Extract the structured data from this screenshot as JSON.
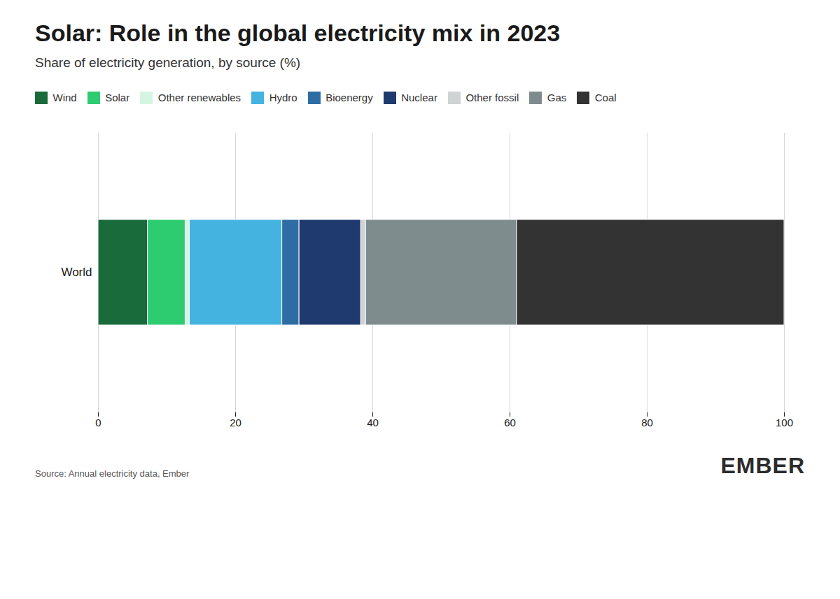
{
  "chart_data": {
    "type": "bar",
    "orientation": "horizontal",
    "stacked": true,
    "title": "Solar: Role in the global electricity mix in 2023",
    "subtitle": "Share of electricity generation, by source (%)",
    "annotations": [
      "Source: Annual electricity data, Ember",
      "EMBER"
    ],
    "categories": [
      "World"
    ],
    "series": [
      {
        "name": "Wind",
        "color": "#1a6b3c",
        "values": [
          7.2
        ]
      },
      {
        "name": "Solar",
        "color": "#2ecc71",
        "values": [
          5.5
        ]
      },
      {
        "name": "Other renewables",
        "color": "#d5f5e3",
        "values": [
          0.6
        ]
      },
      {
        "name": "Hydro",
        "color": "#45b3e0",
        "values": [
          13.5
        ]
      },
      {
        "name": "Bioenergy",
        "color": "#2e6da4",
        "values": [
          2.5
        ]
      },
      {
        "name": "Nuclear",
        "color": "#1e3a6e",
        "values": [
          9.0
        ]
      },
      {
        "name": "Other fossil",
        "color": "#d0d3d4",
        "values": [
          0.7
        ]
      },
      {
        "name": "Gas",
        "color": "#7f8c8d",
        "values": [
          22.0
        ]
      },
      {
        "name": "Coal",
        "color": "#333333",
        "values": [
          39.0
        ]
      }
    ],
    "xlim": [
      0,
      100
    ],
    "xticks": [
      0,
      20,
      40,
      60,
      80,
      100
    ],
    "grid": true,
    "legend": "top"
  }
}
